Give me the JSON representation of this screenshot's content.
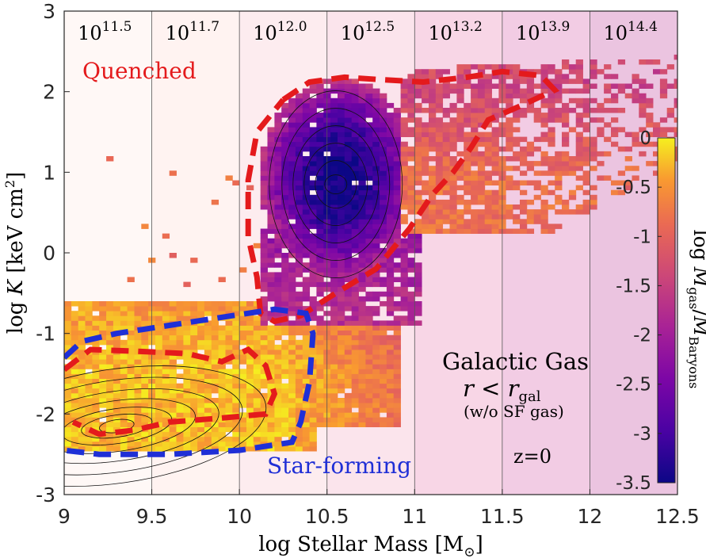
{
  "chart_data": {
    "type": "heatmap",
    "title": "",
    "xlabel_main": "log Stellar Mass [M",
    "xlabel_sub": "⊙",
    "xlabel_close": "]",
    "ylabel_main": "log ",
    "ylabel_var": "K",
    "ylabel_units": " [keV cm",
    "ylabel_sup": "2",
    "ylabel_close": "]",
    "xlim": [
      9,
      12.5
    ],
    "ylim": [
      -3,
      3
    ],
    "x_ticks": [
      "9",
      "9.5",
      "10",
      "10.5",
      "11",
      "11.5",
      "12",
      "12.5"
    ],
    "y_ticks": [
      "3",
      "2",
      "1",
      "0",
      "-1",
      "-2",
      "-3"
    ],
    "halo_mass_bins": [
      {
        "base": "10",
        "exp": "11.5",
        "x_start": 9.0,
        "x_end": 9.5
      },
      {
        "base": "10",
        "exp": "11.7",
        "x_start": 9.5,
        "x_end": 10.0
      },
      {
        "base": "10",
        "exp": "12.0",
        "x_start": 10.0,
        "x_end": 10.5
      },
      {
        "base": "10",
        "exp": "12.5",
        "x_start": 10.5,
        "x_end": 11.0
      },
      {
        "base": "10",
        "exp": "13.2",
        "x_start": 11.0,
        "x_end": 11.5
      },
      {
        "base": "10",
        "exp": "13.9",
        "x_start": 11.5,
        "x_end": 12.0
      },
      {
        "base": "10",
        "exp": "14.4",
        "x_start": 12.0,
        "x_end": 12.5
      }
    ],
    "annotations": {
      "quenched": "Quenched",
      "star_forming": "Star-forming",
      "gas_title": "Galactic Gas",
      "gas_cond_r": "r",
      "gas_cond_lt": " < ",
      "gas_cond_rgal": "r",
      "gas_cond_sub": "gal",
      "gas_note": "(w/o SF gas)",
      "redshift": "z=0"
    },
    "colorbar": {
      "label_prefix": "log ",
      "label_num": "M",
      "label_num_sub": "gas",
      "label_slash": "/",
      "label_den": "M",
      "label_den_sub": "Baryons",
      "range": [
        -3.5,
        0
      ],
      "ticks": [
        "0",
        "-0.5",
        "-1",
        "-1.5",
        "-2",
        "-2.5",
        "-3",
        "-3.5"
      ]
    },
    "quenched_contour": [
      [
        10.25,
        1.9
      ],
      [
        10.4,
        2.12
      ],
      [
        10.6,
        2.18
      ],
      [
        10.8,
        2.15
      ],
      [
        11.05,
        2.12
      ],
      [
        11.3,
        2.18
      ],
      [
        11.5,
        2.25
      ],
      [
        11.72,
        2.2
      ],
      [
        11.8,
        2.02
      ],
      [
        11.6,
        1.82
      ],
      [
        11.42,
        1.65
      ],
      [
        11.32,
        1.3
      ],
      [
        11.22,
        1.0
      ],
      [
        11.1,
        0.72
      ],
      [
        10.97,
        0.3
      ],
      [
        10.78,
        -0.2
      ],
      [
        10.55,
        -0.5
      ],
      [
        10.35,
        -0.78
      ],
      [
        10.2,
        -0.85
      ],
      [
        10.12,
        -0.75
      ],
      [
        10.1,
        -0.3
      ],
      [
        10.05,
        0.2
      ],
      [
        10.05,
        0.9
      ],
      [
        10.1,
        1.5
      ],
      [
        10.25,
        1.9
      ]
    ],
    "sf_red_contour": [
      [
        9.0,
        -1.45
      ],
      [
        9.15,
        -1.2
      ],
      [
        9.4,
        -1.22
      ],
      [
        9.7,
        -1.25
      ],
      [
        9.9,
        -1.35
      ],
      [
        10.05,
        -1.2
      ],
      [
        10.15,
        -1.4
      ],
      [
        10.2,
        -1.75
      ],
      [
        10.15,
        -2.0
      ],
      [
        9.9,
        -2.05
      ],
      [
        9.6,
        -2.1
      ],
      [
        9.4,
        -2.2
      ],
      [
        9.2,
        -2.25
      ],
      [
        9.05,
        -2.1
      ]
    ],
    "sf_blue_contour": [
      [
        9.0,
        -1.3
      ],
      [
        9.1,
        -1.1
      ],
      [
        9.3,
        -1.0
      ],
      [
        9.6,
        -0.9
      ],
      [
        9.9,
        -0.8
      ],
      [
        10.2,
        -0.7
      ],
      [
        10.38,
        -0.75
      ],
      [
        10.42,
        -1.0
      ],
      [
        10.4,
        -1.6
      ],
      [
        10.35,
        -2.1
      ],
      [
        10.3,
        -2.35
      ],
      [
        10.0,
        -2.45
      ],
      [
        9.6,
        -2.5
      ],
      [
        9.2,
        -2.5
      ],
      [
        9.0,
        -2.45
      ]
    ]
  }
}
